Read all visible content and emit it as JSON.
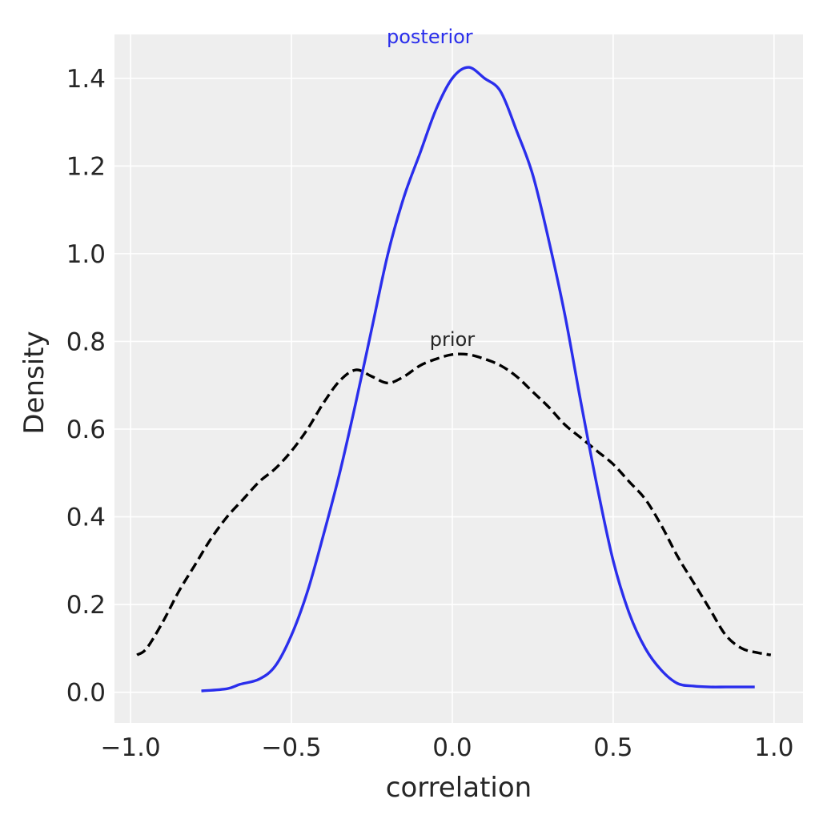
{
  "chart_data": {
    "type": "line",
    "xlabel": "correlation",
    "ylabel": "Density",
    "xlim": [
      -1.05,
      1.09
    ],
    "ylim": [
      -0.07,
      1.5
    ],
    "x_ticks": [
      -1.0,
      -0.5,
      0.0,
      0.5,
      1.0
    ],
    "x_tick_labels": [
      "−1.0",
      "−0.5",
      "0.0",
      "0.5",
      "1.0"
    ],
    "y_ticks": [
      0.0,
      0.2,
      0.4,
      0.6,
      0.8,
      1.0,
      1.2,
      1.4
    ],
    "y_tick_labels": [
      "0.0",
      "0.2",
      "0.4",
      "0.6",
      "0.8",
      "1.0",
      "1.2",
      "1.4"
    ],
    "grid": true,
    "background": "#eeeeee",
    "series": [
      {
        "name": "posterior",
        "color": "#2a2eec",
        "style": "solid",
        "x": [
          -0.78,
          -0.7,
          -0.66,
          -0.6,
          -0.55,
          -0.5,
          -0.45,
          -0.4,
          -0.35,
          -0.3,
          -0.25,
          -0.2,
          -0.15,
          -0.1,
          -0.05,
          0.0,
          0.05,
          0.1,
          0.15,
          0.2,
          0.25,
          0.3,
          0.35,
          0.4,
          0.45,
          0.5,
          0.55,
          0.6,
          0.65,
          0.7,
          0.75,
          0.8,
          0.85,
          0.9,
          0.94
        ],
        "y": [
          0.003,
          0.008,
          0.018,
          0.03,
          0.06,
          0.13,
          0.23,
          0.36,
          0.5,
          0.66,
          0.83,
          1.0,
          1.13,
          1.23,
          1.33,
          1.4,
          1.425,
          1.4,
          1.37,
          1.28,
          1.18,
          1.03,
          0.86,
          0.66,
          0.47,
          0.3,
          0.18,
          0.1,
          0.05,
          0.02,
          0.014,
          0.012,
          0.012,
          0.012,
          0.012
        ]
      },
      {
        "name": "prior",
        "color": "#000000",
        "style": "dashed",
        "x": [
          -0.98,
          -0.95,
          -0.9,
          -0.85,
          -0.8,
          -0.75,
          -0.7,
          -0.65,
          -0.6,
          -0.55,
          -0.5,
          -0.45,
          -0.4,
          -0.35,
          -0.3,
          -0.25,
          -0.2,
          -0.15,
          -0.1,
          -0.05,
          0.0,
          0.05,
          0.1,
          0.15,
          0.2,
          0.25,
          0.3,
          0.35,
          0.4,
          0.45,
          0.5,
          0.55,
          0.6,
          0.65,
          0.7,
          0.75,
          0.8,
          0.85,
          0.9,
          0.95,
          0.99
        ],
        "y": [
          0.085,
          0.1,
          0.16,
          0.23,
          0.29,
          0.35,
          0.4,
          0.44,
          0.48,
          0.51,
          0.55,
          0.6,
          0.66,
          0.71,
          0.735,
          0.72,
          0.705,
          0.72,
          0.745,
          0.76,
          0.77,
          0.77,
          0.76,
          0.745,
          0.72,
          0.685,
          0.65,
          0.61,
          0.58,
          0.55,
          0.52,
          0.48,
          0.44,
          0.38,
          0.31,
          0.25,
          0.19,
          0.13,
          0.1,
          0.09,
          0.085
        ]
      }
    ],
    "annotations": [
      {
        "text": "posterior",
        "color": "#2a2eec",
        "x": -0.07,
        "y": 1.48
      },
      {
        "text": "prior",
        "color": "#262626",
        "x": 0.0,
        "y": 0.79
      }
    ]
  }
}
